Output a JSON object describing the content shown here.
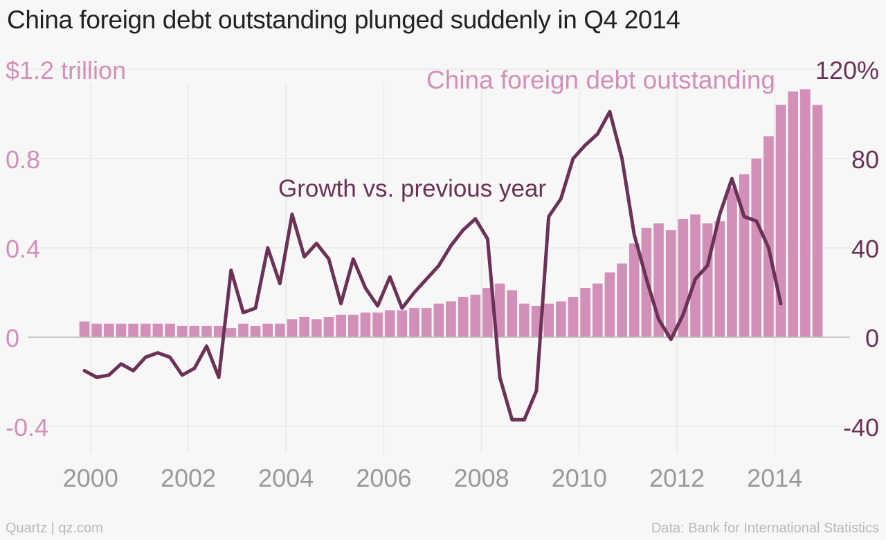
{
  "title": "China foreign debt outstanding plunged suddenly in Q4 2014",
  "footer": {
    "source": "Quartz | qz.com",
    "data_credit": "Data: Bank for International Statistics"
  },
  "colors": {
    "bars": "#d290b8",
    "line": "#6b3256",
    "left_axis_text": "#d290b8",
    "right_axis_text": "#6b3256",
    "gridline": "#e8e8e8",
    "tick_text": "#999999",
    "title_text": "#222222"
  },
  "chart_data": {
    "type": "bar+line",
    "x_tick_labels": [
      "2000",
      "2002",
      "2004",
      "2006",
      "2008",
      "2010",
      "2012",
      "2014"
    ],
    "left_axis": {
      "top_label": "$1.2 trillion",
      "tick_labels": [
        "0.8",
        "0.4",
        "0",
        "-0.4"
      ],
      "ticks": [
        0.8,
        0.4,
        0,
        -0.4
      ],
      "range": [
        -0.5,
        1.2
      ]
    },
    "right_axis": {
      "top_label": "120%",
      "tick_labels": [
        "80",
        "40",
        "0",
        "-40"
      ],
      "ticks": [
        80,
        40,
        0,
        -40
      ],
      "range": [
        -50,
        120
      ]
    },
    "annotations": {
      "bars": "China foreign debt outstanding",
      "line": "Growth vs. previous year"
    },
    "quarters": [
      "Q4 1999",
      "Q1 2000",
      "Q2 2000",
      "Q3 2000",
      "Q4 2000",
      "Q1 2001",
      "Q2 2001",
      "Q3 2001",
      "Q4 2001",
      "Q1 2002",
      "Q2 2002",
      "Q3 2002",
      "Q4 2002",
      "Q1 2003",
      "Q2 2003",
      "Q3 2003",
      "Q4 2003",
      "Q1 2004",
      "Q2 2004",
      "Q3 2004",
      "Q4 2004",
      "Q1 2005",
      "Q2 2005",
      "Q3 2005",
      "Q4 2005",
      "Q1 2006",
      "Q2 2006",
      "Q3 2006",
      "Q4 2006",
      "Q1 2007",
      "Q2 2007",
      "Q3 2007",
      "Q4 2007",
      "Q1 2008",
      "Q2 2008",
      "Q3 2008",
      "Q4 2008",
      "Q1 2009",
      "Q2 2009",
      "Q3 2009",
      "Q4 2009",
      "Q1 2010",
      "Q2 2010",
      "Q3 2010",
      "Q4 2010",
      "Q1 2011",
      "Q2 2011",
      "Q3 2011",
      "Q4 2011",
      "Q1 2012",
      "Q2 2012",
      "Q3 2012",
      "Q4 2012",
      "Q1 2013",
      "Q2 2013",
      "Q3 2013",
      "Q4 2013",
      "Q1 2014",
      "Q2 2014",
      "Q3 2014",
      "Q4 2014"
    ],
    "series": [
      {
        "axis": "left",
        "kind": "bar",
        "values": [
          0.07,
          0.06,
          0.06,
          0.06,
          0.06,
          0.06,
          0.06,
          0.06,
          0.05,
          0.05,
          0.05,
          0.05,
          0.04,
          0.06,
          0.05,
          0.06,
          0.06,
          0.08,
          0.09,
          0.08,
          0.09,
          0.1,
          0.1,
          0.11,
          0.11,
          0.12,
          0.12,
          0.13,
          0.13,
          0.15,
          0.16,
          0.18,
          0.19,
          0.22,
          0.24,
          0.21,
          0.15,
          0.14,
          0.15,
          0.16,
          0.18,
          0.22,
          0.24,
          0.29,
          0.33,
          0.42,
          0.49,
          0.51,
          0.48,
          0.53,
          0.55,
          0.51,
          0.52,
          0.67,
          0.73,
          0.8,
          0.9,
          1.04,
          1.1,
          1.11,
          1.04
        ]
      },
      {
        "axis": "right",
        "kind": "line",
        "values": [
          -15,
          -18,
          -17,
          -12,
          -15,
          -9,
          -7,
          -9,
          -17,
          -14,
          -4,
          -18,
          30,
          11,
          13,
          40,
          24,
          55,
          36,
          42,
          35,
          15,
          35,
          22,
          14,
          27,
          13,
          20,
          26,
          32,
          41,
          48,
          53,
          44,
          -18,
          -37,
          -37,
          -24,
          54,
          62,
          80,
          86,
          91,
          101,
          80,
          46,
          26,
          8,
          -1,
          10,
          26,
          32,
          55,
          71,
          54,
          52,
          40,
          15
        ]
      }
    ]
  }
}
